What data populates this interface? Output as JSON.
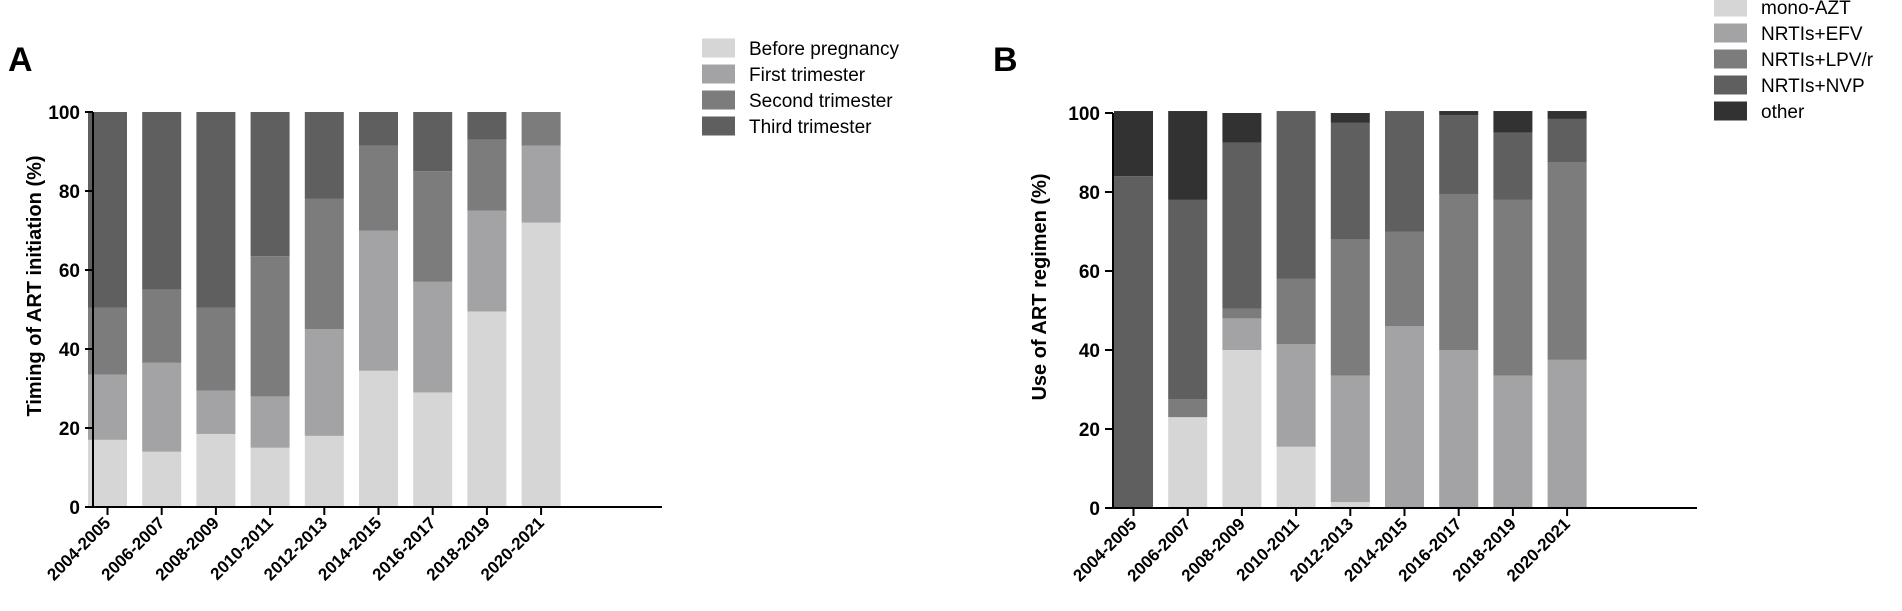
{
  "chart_data": [
    {
      "type": "bar",
      "stacked": true,
      "panel_label": "A",
      "title": "",
      "xlabel": "",
      "ylabel": "Timing of ART initiation (%)",
      "ylim": [
        0,
        100
      ],
      "yticks": [
        "0",
        "20",
        "40",
        "60",
        "80",
        "100"
      ],
      "categories": [
        "2004-2005",
        "2006-2007",
        "2008-2009",
        "2010-2011",
        "2012-2013",
        "2014-2015",
        "2016-2017",
        "2018-2019",
        "2020-2021"
      ],
      "legend_position": "top-right",
      "series": [
        {
          "name": "Before pregnancy",
          "color": "#d6d6d6",
          "values": [
            17,
            14,
            18.5,
            15,
            18,
            34.5,
            29,
            49.5,
            72
          ]
        },
        {
          "name": "First trimester",
          "color": "#a3a3a6",
          "values": [
            16.5,
            22.5,
            11,
            13,
            27,
            35.5,
            28,
            25.5,
            19.5
          ]
        },
        {
          "name": "Second trimester",
          "color": "#7c7c7c",
          "values": [
            17,
            18.5,
            21,
            35.5,
            33,
            21.5,
            28,
            18,
            8.5
          ]
        },
        {
          "name": "Third trimester",
          "color": "#5f5f5f",
          "values": [
            49.5,
            45,
            49.5,
            36.5,
            22,
            8.5,
            15,
            7,
            0
          ]
        }
      ]
    },
    {
      "type": "bar",
      "stacked": true,
      "panel_label": "B",
      "title": "",
      "xlabel": "",
      "ylabel": "Use of ART regimen (%)",
      "ylim": [
        0,
        100
      ],
      "yticks": [
        "0",
        "20",
        "40",
        "60",
        "80",
        "100"
      ],
      "categories": [
        "2004-2005",
        "2006-2007",
        "2008-2009",
        "2010-2011",
        "2012-2013",
        "2014-2015",
        "2016-2017",
        "2018-2019",
        "2020-2021"
      ],
      "legend_position": "top-right",
      "series": [
        {
          "name": "mono-AZT",
          "color": "#d6d6d6",
          "values": [
            0,
            23,
            40,
            15.5,
            1.5,
            0,
            0,
            0,
            0
          ]
        },
        {
          "name": "NRTIs+EFV",
          "color": "#a3a3a6",
          "values": [
            0,
            0,
            8,
            26,
            32,
            46,
            40,
            33.5,
            37.5
          ]
        },
        {
          "name": "NRTIs+LPV/r",
          "color": "#7c7c7c",
          "values": [
            0,
            4.5,
            2.5,
            16.5,
            34.5,
            24,
            39.5,
            44.5,
            50
          ]
        },
        {
          "name": "NRTIs+NVP",
          "color": "#5f5f5f",
          "values": [
            84,
            50.5,
            42,
            42.5,
            29.5,
            30.5,
            20,
            17,
            11
          ]
        },
        {
          "name": "other",
          "color": "#323232",
          "values": [
            16.5,
            22.5,
            7.5,
            0,
            2.5,
            0,
            1,
            5.5,
            2
          ]
        }
      ]
    }
  ]
}
